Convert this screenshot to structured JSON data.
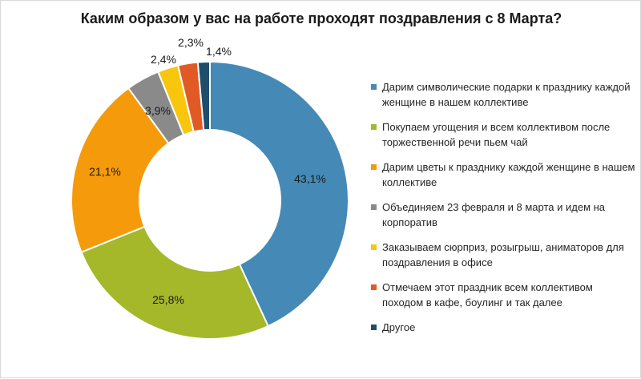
{
  "chart_data": {
    "type": "pie",
    "title": "Каким образом у вас на работе проходят поздравления с 8 Марта?",
    "legend_position": "right",
    "slices": [
      {
        "label": "Дарим символические подарки к празднику каждой женщине в нашем коллективе",
        "value": 43.1,
        "value_label": "43,1%",
        "color": "#4589b6"
      },
      {
        "label": "Покупаем угощения и всем коллективом после торжественной речи пьем чай",
        "value": 25.8,
        "value_label": "25,8%",
        "color": "#a4b82a"
      },
      {
        "label": "Дарим цветы к празднику каждой женщине в нашем коллективе",
        "value": 21.1,
        "value_label": "21,1%",
        "color": "#f59a0b"
      },
      {
        "label": "Объединяем 23 февраля и 8 марта и идем на корпоратив",
        "value": 3.9,
        "value_label": "3,9%",
        "color": "#8a8a8a"
      },
      {
        "label": "Заказываем сюрприз, розыгрыш, аниматоров для поздравления в офисе",
        "value": 2.4,
        "value_label": "2,4%",
        "color": "#f7c60d"
      },
      {
        "label": "Отмечаем этот праздник всем коллективом походом в кафе, боулинг и так далее",
        "value": 2.3,
        "value_label": "2,3%",
        "color": "#e15a26"
      },
      {
        "label": "Другое",
        "value": 1.4,
        "value_label": "1,4%",
        "color": "#1f4e6b"
      }
    ]
  }
}
